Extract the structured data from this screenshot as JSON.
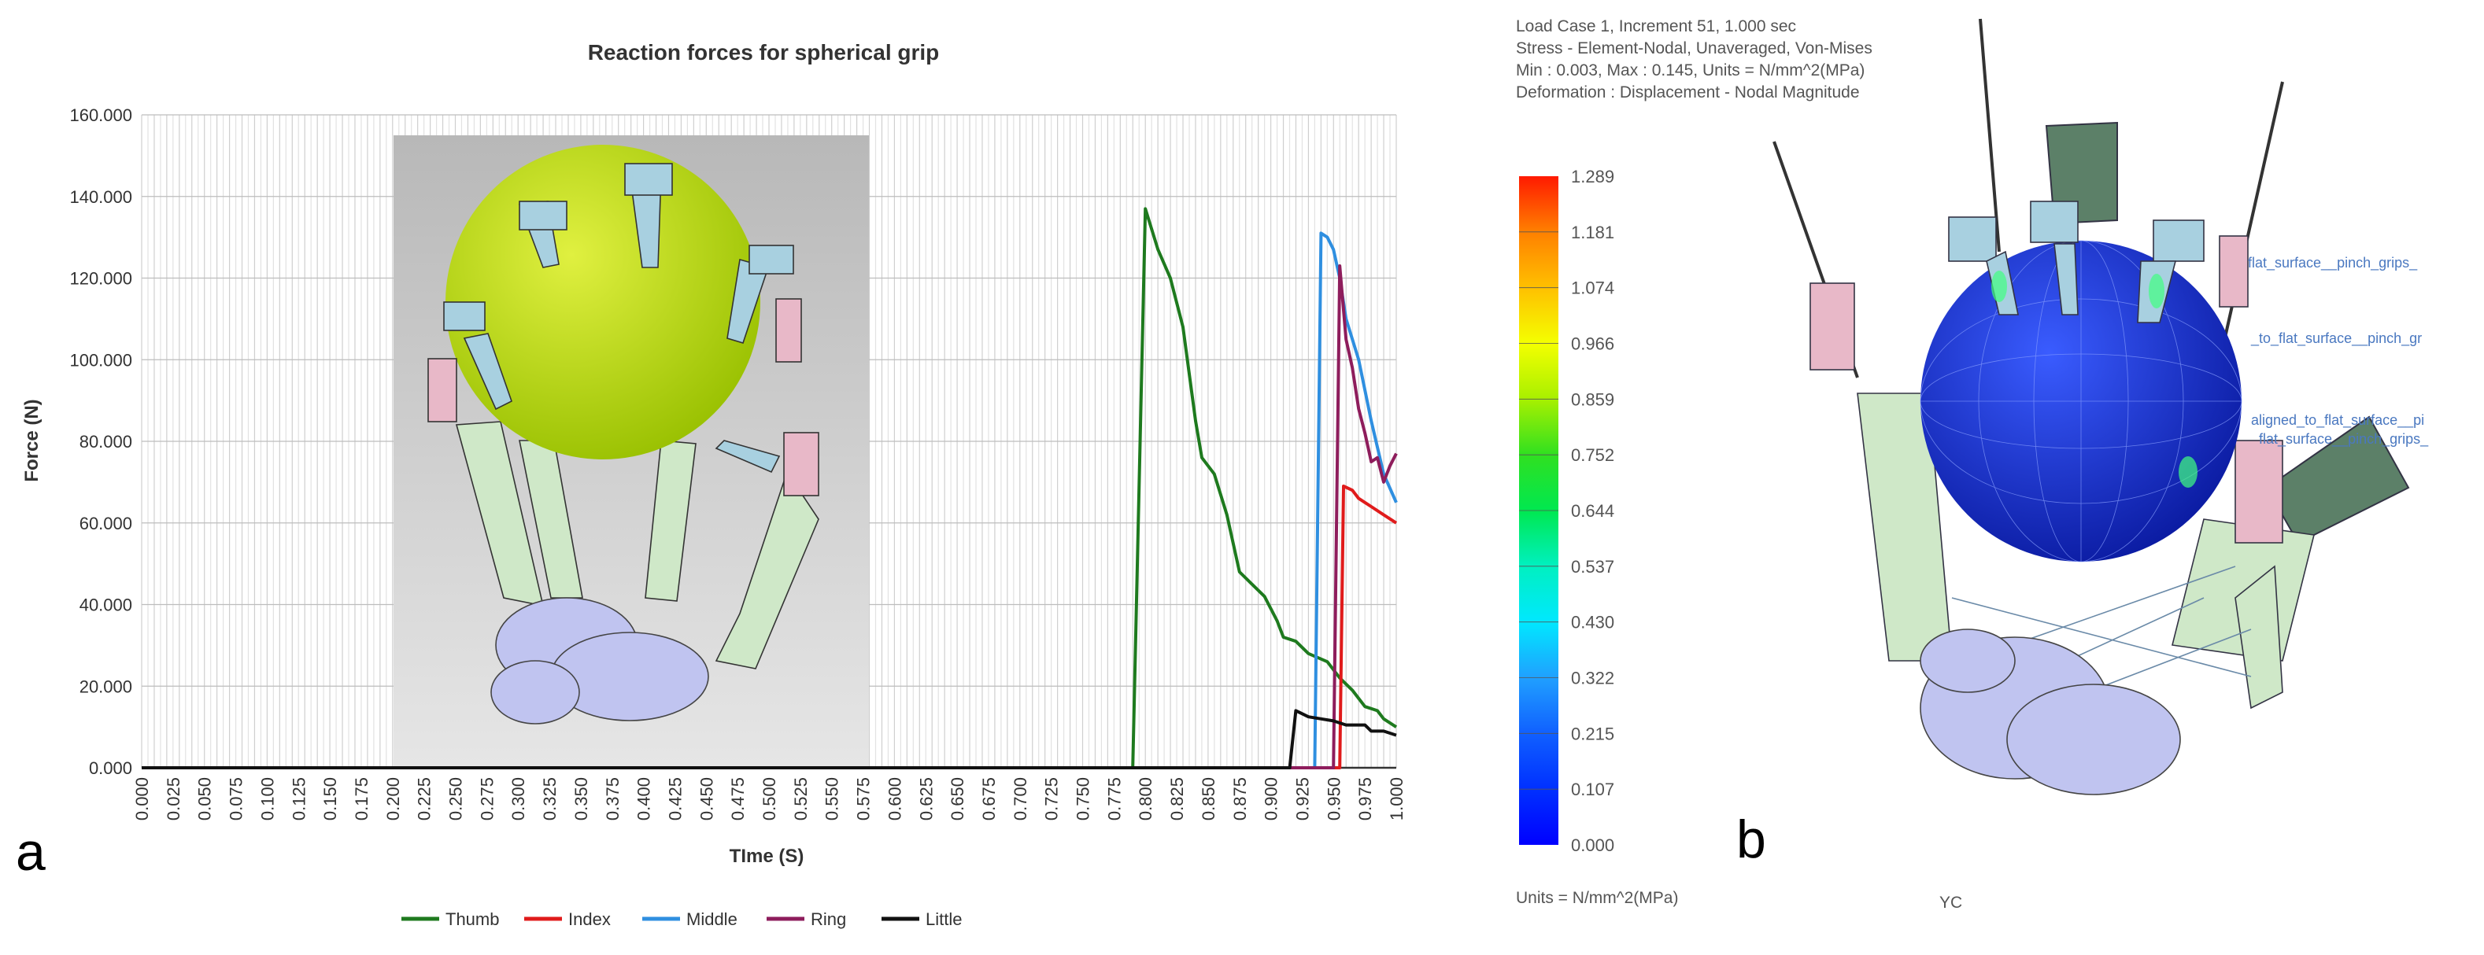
{
  "panel_labels": {
    "a": "a",
    "b": "b"
  },
  "chart_data": {
    "type": "line",
    "title": "Reaction forces for spherical grip",
    "xlabel": "TIme (S)",
    "ylabel": "Force (N)",
    "xlim": [
      0,
      1
    ],
    "ylim": [
      0,
      160
    ],
    "y_ticks": [
      "0.000",
      "20.000",
      "40.000",
      "60.000",
      "80.000",
      "100.000",
      "120.000",
      "140.000",
      "160.000"
    ],
    "x_ticks": [
      "0.000",
      "0.025",
      "0.050",
      "0.075",
      "0.100",
      "0.125",
      "0.150",
      "0.175",
      "0.200",
      "0.225",
      "0.250",
      "0.275",
      "0.300",
      "0.325",
      "0.350",
      "0.375",
      "0.400",
      "0.425",
      "0.450",
      "0.475",
      "0.500",
      "0.525",
      "0.550",
      "0.575",
      "0.600",
      "0.625",
      "0.650",
      "0.675",
      "0.700",
      "0.725",
      "0.750",
      "0.775",
      "0.800",
      "0.825",
      "0.850",
      "0.875",
      "0.900",
      "0.925",
      "0.950",
      "0.975",
      "1.000"
    ],
    "grid": "vertical minor + horizontal major",
    "legend_placement": "bottom",
    "series": [
      {
        "name": "Thumb",
        "color": "#1e7a1e",
        "x": [
          0,
          0.79,
          0.8,
          0.81,
          0.82,
          0.83,
          0.84,
          0.845,
          0.855,
          0.865,
          0.875,
          0.885,
          0.895,
          0.905,
          0.91,
          0.92,
          0.93,
          0.945,
          0.955,
          0.965,
          0.975,
          0.985,
          0.99,
          1.0
        ],
        "y": [
          0,
          0,
          137,
          127,
          120,
          108,
          85,
          76,
          72,
          62,
          48,
          45,
          42,
          36,
          32,
          31,
          28,
          26,
          22,
          19,
          15,
          14,
          12,
          10
        ]
      },
      {
        "name": "Index",
        "color": "#e01b1b",
        "x": [
          0,
          0.955,
          0.958,
          0.965,
          0.97,
          0.975,
          0.98,
          0.99,
          1.0
        ],
        "y": [
          0,
          0,
          69,
          68,
          66,
          65,
          64,
          62,
          60
        ]
      },
      {
        "name": "Middle",
        "color": "#2f8fe0",
        "x": [
          0,
          0.935,
          0.94,
          0.945,
          0.95,
          0.955,
          0.96,
          0.97,
          0.98,
          0.99,
          1.0
        ],
        "y": [
          0,
          0,
          131,
          130,
          127,
          120,
          110,
          100,
          85,
          72,
          65
        ]
      },
      {
        "name": "Ring",
        "color": "#8e1d5c",
        "x": [
          0,
          0.95,
          0.955,
          0.96,
          0.965,
          0.97,
          0.975,
          0.98,
          0.985,
          0.99,
          0.995,
          1.0
        ],
        "y": [
          0,
          0,
          123,
          105,
          98,
          88,
          82,
          75,
          76,
          70,
          74,
          77
        ]
      },
      {
        "name": "Little",
        "color": "#111111",
        "x": [
          0,
          0.915,
          0.92,
          0.93,
          0.94,
          0.95,
          0.96,
          0.97,
          0.975,
          0.98,
          0.99,
          1.0
        ],
        "y": [
          0,
          0,
          14,
          12.5,
          12,
          11.5,
          10.5,
          10.5,
          10.5,
          9,
          9,
          8
        ]
      }
    ]
  },
  "fe_panel": {
    "info_lines": [
      "Load Case 1, Increment 51, 1.000 sec",
      "Stress - Element-Nodal, Unaveraged, Von-Mises",
      "Min : 0.003, Max : 0.145, Units = N/mm^2(MPa)",
      "Deformation : Displacement - Nodal Magnitude"
    ],
    "colorbar_labels": [
      "1.289",
      "1.181",
      "1.074",
      "0.966",
      "0.859",
      "0.752",
      "0.644",
      "0.537",
      "0.430",
      "0.322",
      "0.215",
      "0.107",
      "0.000"
    ],
    "colorbar_colors": [
      "#ff1a00",
      "#ff8000",
      "#ffc000",
      "#f4ff00",
      "#a8f000",
      "#30e020",
      "#00e850",
      "#00f0c0",
      "#00e8ff",
      "#20a0ff",
      "#1060ff",
      "#0030ff",
      "#0000ff"
    ],
    "units": "Units = N/mm^2(MPa)",
    "axis_label": "YC",
    "annotations": [
      "flat_surface__pinch_grips_",
      "_to_flat_surface__pinch_gr",
      "aligned_to_flat_surface__pi",
      "flat_surface__pinch_grips_"
    ]
  }
}
